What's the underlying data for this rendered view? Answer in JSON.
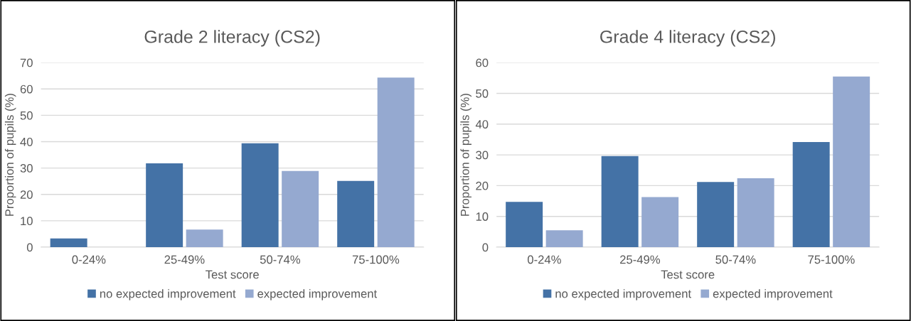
{
  "chart_data": [
    {
      "type": "bar",
      "title": "Grade 2 literacy (CS2)",
      "xlabel": "Test score",
      "ylabel": "Proportion of pupils (%)",
      "categories": [
        "0-24%",
        "25-49%",
        "50-74%",
        "75-100%"
      ],
      "series": [
        {
          "name": "no expected improvement",
          "color": "#4472a6",
          "values": [
            3.3,
            31.8,
            39.4,
            25.1
          ]
        },
        {
          "name": "expected improvement",
          "color": "#95a9d0",
          "values": [
            0,
            6.7,
            28.9,
            64.3
          ]
        }
      ],
      "ylim": [
        0,
        70
      ],
      "yticks": [
        0,
        10,
        20,
        30,
        40,
        50,
        60,
        70
      ],
      "grid": "y",
      "legend": "bottom"
    },
    {
      "type": "bar",
      "title": "Grade 4 literacy (CS2)",
      "xlabel": "Test score",
      "ylabel": "Proportion of pupils (%)",
      "categories": [
        "0-24%",
        "25-49%",
        "50-74%",
        "75-100%"
      ],
      "series": [
        {
          "name": "no expected improvement",
          "color": "#4472a6",
          "values": [
            14.7,
            29.6,
            21.2,
            34.2
          ]
        },
        {
          "name": "expected improvement",
          "color": "#95a9d0",
          "values": [
            5.5,
            16.3,
            22.4,
            55.5
          ]
        }
      ],
      "ylim": [
        0,
        60
      ],
      "yticks": [
        0,
        10,
        20,
        30,
        40,
        50,
        60
      ],
      "grid": "y",
      "legend": "bottom"
    }
  ]
}
